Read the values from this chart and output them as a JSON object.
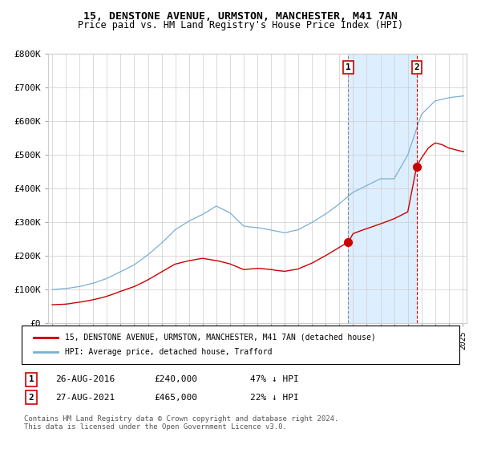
{
  "title": "15, DENSTONE AVENUE, URMSTON, MANCHESTER, M41 7AN",
  "subtitle": "Price paid vs. HM Land Registry's House Price Index (HPI)",
  "legend_property": "15, DENSTONE AVENUE, URMSTON, MANCHESTER, M41 7AN (detached house)",
  "legend_hpi": "HPI: Average price, detached house, Trafford",
  "sale1_date": "26-AUG-2016",
  "sale1_price": "£240,000",
  "sale1_hpi": "47% ↓ HPI",
  "sale1_year": 2016.65,
  "sale1_value": 240000,
  "sale2_date": "27-AUG-2021",
  "sale2_price": "£465,000",
  "sale2_hpi": "22% ↓ HPI",
  "sale2_year": 2021.65,
  "sale2_value": 465000,
  "ylim": [
    0,
    800000
  ],
  "yticks": [
    0,
    100000,
    200000,
    300000,
    400000,
    500000,
    600000,
    700000,
    800000
  ],
  "xlim_start": 1994.7,
  "xlim_end": 2025.3,
  "property_color": "#cc0000",
  "hpi_color": "#7aafd4",
  "shade_color": "#ddeeff",
  "grid_color": "#cccccc",
  "bg_color": "#ffffff",
  "footnote": "Contains HM Land Registry data © Crown copyright and database right 2024.\nThis data is licensed under the Open Government Licence v3.0."
}
